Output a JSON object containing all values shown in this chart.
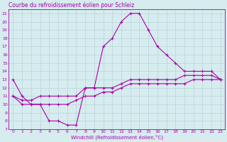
{
  "title": "Courbe du refroidissement éolien pour Schleiz",
  "xlabel": "Windchill (Refroidissement éolien,°C)",
  "xlim": [
    -0.5,
    23.5
  ],
  "ylim": [
    7,
    21.5
  ],
  "xticks": [
    0,
    1,
    2,
    3,
    4,
    5,
    6,
    7,
    8,
    9,
    10,
    11,
    12,
    13,
    14,
    15,
    16,
    17,
    18,
    19,
    20,
    21,
    22,
    23
  ],
  "yticks": [
    7,
    8,
    9,
    10,
    11,
    12,
    13,
    14,
    15,
    16,
    17,
    18,
    19,
    20,
    21
  ],
  "bg_color": "#d6ecee",
  "line_color": "#aa00aa",
  "grid_color": "#b8d4d8",
  "line1_x": [
    0,
    1,
    2,
    3,
    4,
    5,
    6,
    7,
    8,
    9,
    10,
    11,
    12,
    13,
    14,
    15,
    16,
    17,
    18,
    19,
    20,
    21,
    22,
    23
  ],
  "line1_y": [
    13,
    11,
    10,
    10,
    8,
    8,
    7.5,
    7.5,
    12,
    12,
    17,
    18,
    20,
    21,
    21,
    19,
    17,
    16,
    15,
    14,
    14,
    14,
    14,
    13
  ],
  "line2_x": [
    0,
    1,
    2,
    3,
    4,
    5,
    6,
    7,
    8,
    9,
    10,
    11,
    12,
    13,
    14,
    15,
    16,
    17,
    18,
    19,
    20,
    21,
    22,
    23
  ],
  "line2_y": [
    11,
    10.5,
    10.5,
    11,
    11,
    11,
    11,
    11,
    12,
    12,
    12,
    12,
    12.5,
    13,
    13,
    13,
    13,
    13,
    13,
    13.5,
    13.5,
    13.5,
    13.5,
    13
  ],
  "line3_x": [
    0,
    1,
    2,
    3,
    4,
    5,
    6,
    7,
    8,
    9,
    10,
    11,
    12,
    13,
    14,
    15,
    16,
    17,
    18,
    19,
    20,
    21,
    22,
    23
  ],
  "line3_y": [
    11,
    10,
    10,
    10,
    10,
    10,
    10,
    10.5,
    11,
    11,
    11.5,
    11.5,
    12,
    12.5,
    12.5,
    12.5,
    12.5,
    12.5,
    12.5,
    12.5,
    13,
    13,
    13,
    13
  ],
  "title_fontsize": 5.5,
  "label_fontsize": 5.0,
  "tick_fontsize": 4.5
}
